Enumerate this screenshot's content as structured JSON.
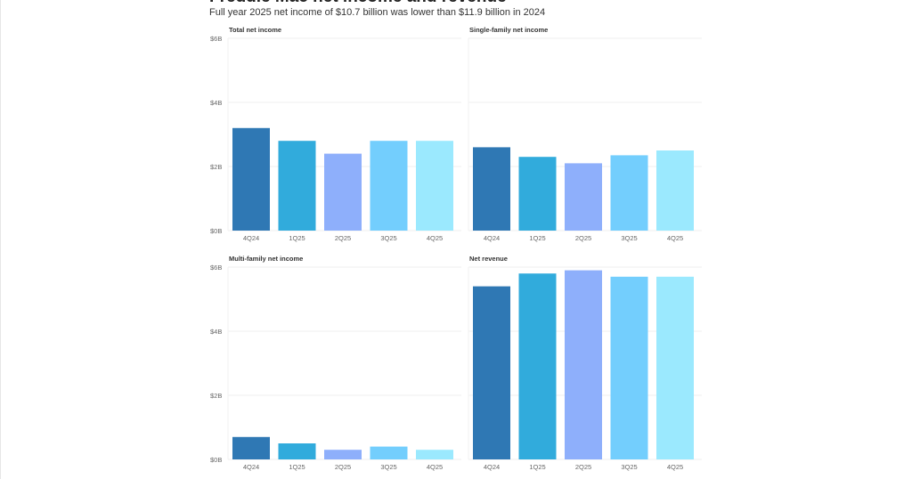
{
  "title": "Freddie Mac net income and revenue",
  "subtitle": "Full year 2025 net income of $10.7 billion was lower than $11.9 billion in 2024",
  "colors": [
    "#2f78b4",
    "#31abdc",
    "#8eaffb",
    "#73cefd",
    "#9be9fe"
  ],
  "chart_data": [
    {
      "type": "bar",
      "title": "Total net income",
      "categories": [
        "4Q24",
        "1Q25",
        "2Q25",
        "3Q25",
        "4Q25"
      ],
      "values": [
        3.2,
        2.8,
        2.4,
        2.8,
        2.8
      ],
      "ylim": [
        0,
        6
      ],
      "yticks": [
        "$0B",
        "$2B",
        "$4B",
        "$6B"
      ],
      "grid": true
    },
    {
      "type": "bar",
      "title": "Single-family net income",
      "categories": [
        "4Q24",
        "1Q25",
        "2Q25",
        "3Q25",
        "4Q25"
      ],
      "values": [
        2.6,
        2.3,
        2.1,
        2.35,
        2.5
      ],
      "ylim": [
        0,
        6
      ],
      "grid": true
    },
    {
      "type": "bar",
      "title": "Multi-family net income",
      "categories": [
        "4Q24",
        "1Q25",
        "2Q25",
        "3Q25",
        "4Q25"
      ],
      "values": [
        0.7,
        0.5,
        0.3,
        0.4,
        0.3
      ],
      "ylim": [
        0,
        6
      ],
      "yticks": [
        "$0B",
        "$2B",
        "$4B",
        "$6B"
      ],
      "grid": true
    },
    {
      "type": "bar",
      "title": "Net revenue",
      "categories": [
        "4Q24",
        "1Q25",
        "2Q25",
        "3Q25",
        "4Q25"
      ],
      "values": [
        5.4,
        5.8,
        5.9,
        5.7,
        5.7
      ],
      "ylim": [
        0,
        6
      ],
      "grid": true
    }
  ]
}
